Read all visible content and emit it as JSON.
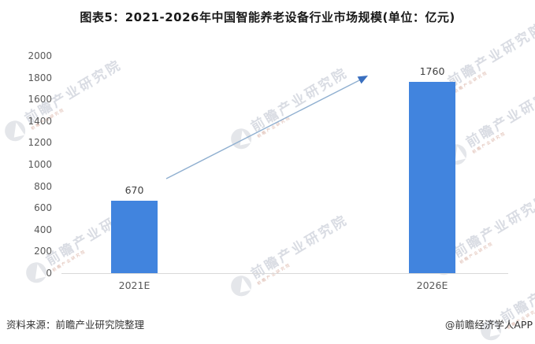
{
  "header": {
    "title": "图表5：2021-2026年中国智能养老设备行业市场规模(单位：亿元)"
  },
  "chart_data": {
    "type": "bar",
    "title": "图表5：2021-2026年中国智能养老设备行业市场规模(单位：亿元)",
    "unit": "亿元",
    "categories": [
      "2021E",
      "2026E"
    ],
    "values": [
      670,
      1760
    ],
    "data_labels": [
      "670",
      "1760"
    ],
    "xlabel": "",
    "ylabel": "",
    "ylim": [
      0,
      2000
    ],
    "yticks": [
      0,
      200,
      400,
      600,
      800,
      1000,
      1200,
      1400,
      1600,
      1800,
      2000
    ],
    "grid": false,
    "legend": "none",
    "bar_color": "#4184DE",
    "annotations": [
      {
        "type": "trend-arrow",
        "from_category": "2021E",
        "to_category": "2026E",
        "line_color": "#8fafd0",
        "head_color": "#3a6fbf"
      }
    ]
  },
  "watermark": {
    "text": "前瞻产业研究院"
  },
  "footer": {
    "source": "资料来源：前瞻产业研究院整理",
    "brand": "@前瞻经济学人APP"
  },
  "colors": {
    "bar": "#4184DE",
    "axis_line": "#d9d9d9",
    "tick_text": "#595959",
    "title_text": "#1a1a1a"
  }
}
